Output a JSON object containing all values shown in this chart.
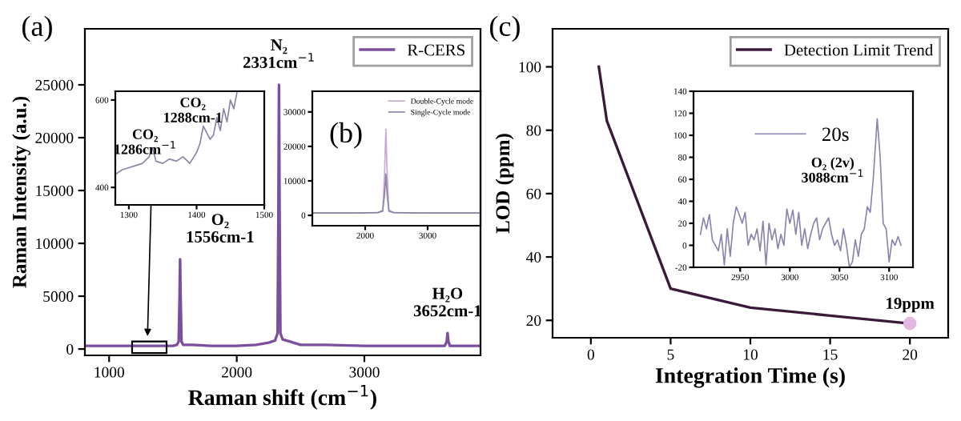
{
  "chart_data": [
    {
      "type": "line",
      "title": "(a)",
      "xlabel": "Raman shift (cm$^{−1}$)",
      "ylabel": "Raman Intensity (a.u.)",
      "xlim": [
        810,
        3910
      ],
      "ylim": [
        -600,
        30300
      ],
      "xticks": [
        1000,
        2000,
        3000
      ],
      "yticks": [
        0,
        5000,
        10000,
        15000,
        20000,
        25000
      ],
      "legend": "top right",
      "grid": false,
      "x": [
        810,
        1000,
        1200,
        1400,
        1500,
        1530,
        1545,
        1552,
        1556,
        1560,
        1567,
        1580,
        1650,
        1800,
        2000,
        2150,
        2250,
        2300,
        2320,
        2326,
        2331,
        2336,
        2342,
        2360,
        2420,
        2500,
        2700,
        3000,
        3300,
        3550,
        3630,
        3645,
        3652,
        3659,
        3670,
        3750,
        3910
      ],
      "series": [
        {
          "name": "R-CERS",
          "color": "#7b4f9d",
          "values": [
            300,
            300,
            300,
            300,
            300,
            400,
            700,
            5000,
            8500,
            5000,
            700,
            400,
            400,
            300,
            300,
            400,
            600,
            800,
            1500,
            12000,
            25000,
            12000,
            1500,
            900,
            700,
            400,
            400,
            300,
            300,
            300,
            300,
            700,
            1500,
            700,
            300,
            300,
            300
          ]
        }
      ],
      "annotations": [
        {
          "text": "N₂\n2331cm$^{−1}$",
          "x": 2331,
          "y": 25000
        },
        {
          "text": "O₂\n1556cm-1",
          "x": 1556,
          "y": 8500
        },
        {
          "text": "H₂O\n3652cm-1",
          "x": 3652,
          "y": 1500
        }
      ]
    },
    {
      "type": "line",
      "xlim": [
        1280,
        1500
      ],
      "ylim": [
        360,
        620
      ],
      "xticks": [
        1300,
        1400,
        1500
      ],
      "yticks": [
        400,
        600
      ],
      "grid": false,
      "x": [
        1280,
        1290,
        1300,
        1310,
        1320,
        1330,
        1335,
        1340,
        1350,
        1360,
        1370,
        1380,
        1390,
        1400,
        1405,
        1410,
        1420,
        1425,
        1430,
        1435,
        1440,
        1445,
        1450,
        1455,
        1460
      ],
      "series": [
        {
          "color": "#8a85a8",
          "values": [
            430,
            440,
            445,
            450,
            455,
            470,
            490,
            460,
            455,
            465,
            460,
            470,
            455,
            480,
            500,
            540,
            510,
            520,
            560,
            530,
            580,
            550,
            600,
            580,
            620
          ]
        }
      ],
      "annotations": [
        "CO₂\n1286cm$^{−1}$",
        "CO₂\n1288cm-1"
      ]
    },
    {
      "type": "line",
      "title": "(b)",
      "xlim": [
        1154,
        3846
      ],
      "ylim": [
        -3000,
        36000
      ],
      "xticks": [
        2000,
        3000
      ],
      "yticks": [
        0,
        10000,
        20000,
        30000
      ],
      "legend": "top right",
      "grid": false,
      "x": [
        1154,
        1800,
        2200,
        2280,
        2310,
        2331,
        2352,
        2380,
        2460,
        3000,
        3846
      ],
      "series": [
        {
          "name": "Double-Cycle mode",
          "color": "#c9a8d8",
          "values": [
            700,
            700,
            800,
            1500,
            12000,
            25000,
            12000,
            1500,
            800,
            700,
            700
          ]
        },
        {
          "name": "Single-Cycle mode",
          "color": "#8d85a8",
          "values": [
            700,
            700,
            800,
            1200,
            6000,
            12000,
            6000,
            1200,
            800,
            700,
            700
          ]
        }
      ]
    },
    {
      "type": "line",
      "title": "(c)",
      "xlabel": "Integration Time (s)",
      "ylabel": "LOD (ppm)",
      "xlim": [
        -2.4,
        22.4
      ],
      "ylim": [
        14.5,
        112
      ],
      "xticks": [
        0,
        5,
        10,
        15,
        20
      ],
      "yticks": [
        20,
        40,
        60,
        80,
        100
      ],
      "legend": "top right",
      "grid": false,
      "series": [
        {
          "name": "Detection Limit Trend",
          "color": "#3a1a3a",
          "x": [
            0.5,
            1,
            5,
            10,
            15,
            20
          ],
          "values": [
            100,
            83,
            30,
            24,
            21.5,
            19
          ]
        },
        {
          "type": "scatter",
          "marker": "circle",
          "color": "#e0b8e0",
          "x": [
            20
          ],
          "values": [
            19
          ]
        }
      ],
      "annotations": [
        {
          "text": "19ppm",
          "x": 20,
          "y": 19
        }
      ]
    },
    {
      "type": "line",
      "xlim": [
        2903,
        3124
      ],
      "ylim": [
        -20,
        140
      ],
      "xticks": [
        2950,
        3000,
        3050,
        3100
      ],
      "yticks": [
        -20,
        0,
        20,
        40,
        60,
        80,
        100,
        120,
        140
      ],
      "legend": "top left",
      "grid": false,
      "x": [
        2910,
        2913,
        2916,
        2919,
        2922,
        2925,
        2928,
        2931,
        2934,
        2937,
        2940,
        2943,
        2946,
        2949,
        2952,
        2955,
        2958,
        2961,
        2964,
        2967,
        2970,
        2973,
        2976,
        2979,
        2982,
        2985,
        2988,
        2991,
        2994,
        2997,
        3000,
        3003,
        3006,
        3009,
        3012,
        3015,
        3018,
        3021,
        3024,
        3027,
        3030,
        3033,
        3036,
        3039,
        3042,
        3045,
        3048,
        3051,
        3054,
        3057,
        3060,
        3063,
        3066,
        3069,
        3072,
        3075,
        3078,
        3081,
        3084,
        3088,
        3091,
        3094,
        3097,
        3100,
        3103,
        3106,
        3109,
        3112
      ],
      "series": [
        {
          "name": "20s",
          "color": "#8a85b0",
          "values": [
            10,
            25,
            15,
            28,
            5,
            0,
            -5,
            10,
            -18,
            15,
            -10,
            20,
            35,
            28,
            20,
            30,
            0,
            10,
            5,
            15,
            -5,
            22,
            -18,
            20,
            5,
            15,
            -3,
            10,
            0,
            33,
            20,
            32,
            10,
            30,
            0,
            15,
            -3,
            10,
            20,
            25,
            5,
            15,
            20,
            25,
            10,
            0,
            5,
            -5,
            15,
            0,
            -20,
            -15,
            5,
            -10,
            10,
            15,
            35,
            30,
            60,
            115,
            80,
            20,
            15,
            -15,
            5,
            0,
            8,
            0
          ]
        }
      ],
      "annotations": [
        {
          "text": "O₂ (2v)\n3088cm$^{−1}$",
          "x": 3088,
          "y": 115
        }
      ]
    }
  ]
}
